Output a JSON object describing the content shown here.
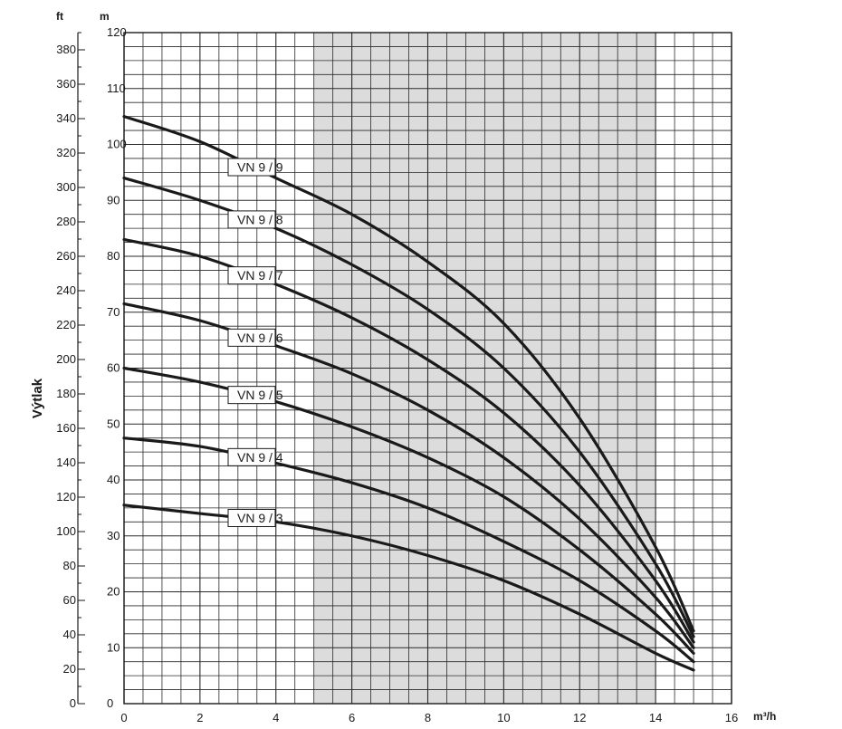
{
  "chart_data": {
    "type": "line",
    "ylabel": "Výtlak",
    "x_unit": "m³/h",
    "y_unit_left_outer": "ft",
    "y_unit_left_inner": "m",
    "xlim": [
      0,
      16
    ],
    "ylim": [
      0,
      120
    ],
    "ft_lim": [
      0,
      390
    ],
    "grid": true,
    "shaded_range": [
      5,
      14
    ],
    "x_ticks": [
      0,
      2,
      4,
      6,
      8,
      10,
      12,
      14,
      16
    ],
    "y_ticks_m": [
      0,
      10,
      20,
      30,
      40,
      50,
      60,
      70,
      80,
      90,
      100,
      110,
      120
    ],
    "y_ticks_ft": [
      0,
      20,
      40,
      60,
      80,
      100,
      120,
      140,
      160,
      180,
      200,
      220,
      240,
      260,
      280,
      300,
      320,
      340,
      360,
      380
    ],
    "series": [
      {
        "name": "VN 9 / 9",
        "x": [
          0,
          2,
          4,
          6,
          8,
          10,
          12,
          14,
          15
        ],
        "y": [
          105,
          100.5,
          94,
          87.5,
          79,
          68,
          51,
          28,
          13
        ]
      },
      {
        "name": "VN 9 / 8",
        "x": [
          0,
          2,
          4,
          6,
          8,
          10,
          12,
          14,
          15
        ],
        "y": [
          94,
          90,
          85,
          78.5,
          70.5,
          60,
          45,
          25,
          12
        ]
      },
      {
        "name": "VN 9 / 7",
        "x": [
          0,
          2,
          4,
          6,
          8,
          10,
          12,
          14,
          15
        ],
        "y": [
          83,
          80,
          75,
          69,
          61.5,
          52,
          39,
          22,
          11
        ]
      },
      {
        "name": "VN 9 / 6",
        "x": [
          0,
          2,
          4,
          6,
          8,
          10,
          12,
          14,
          15
        ],
        "y": [
          71.5,
          68.5,
          64,
          59,
          52.5,
          44,
          33,
          19,
          10
        ]
      },
      {
        "name": "VN 9 / 5",
        "x": [
          0,
          2,
          4,
          6,
          8,
          10,
          12,
          14,
          15
        ],
        "y": [
          60,
          57.5,
          54,
          49.5,
          44,
          37,
          27.5,
          16,
          9
        ]
      },
      {
        "name": "VN 9 / 4",
        "x": [
          0,
          2,
          4,
          6,
          8,
          10,
          12,
          14,
          15
        ],
        "y": [
          47.5,
          46,
          43,
          39.5,
          35,
          29,
          22,
          13,
          7.5
        ]
      },
      {
        "name": "VN 9 / 3",
        "x": [
          0,
          2,
          4,
          6,
          8,
          10,
          12,
          14,
          15
        ],
        "y": [
          35.5,
          34,
          32.5,
          30,
          26.5,
          22,
          16,
          9,
          6
        ]
      }
    ]
  }
}
